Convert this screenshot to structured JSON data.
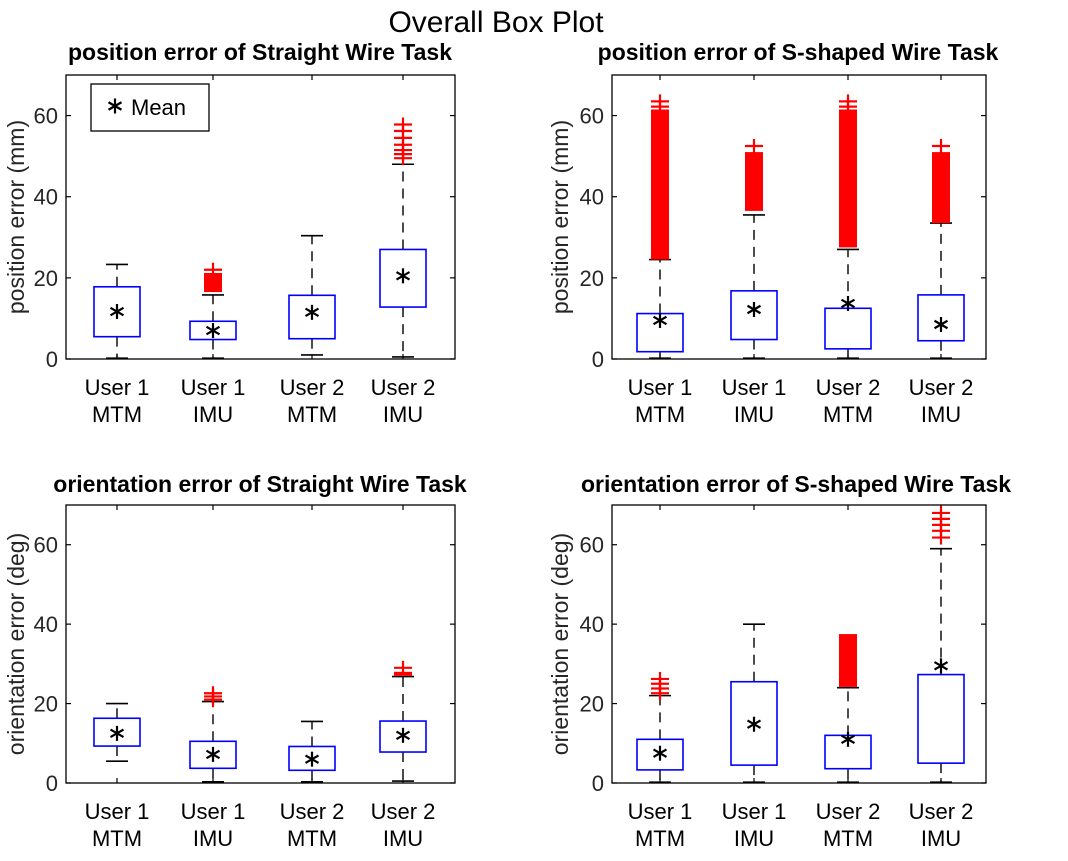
{
  "figure_title": "Overall Box Plot",
  "legend": {
    "symbol": "*",
    "label": "Mean"
  },
  "colors": {
    "box": "#0000ff",
    "whisker": "#000000",
    "outlier": "#ff0000",
    "mean": "#000000"
  },
  "chart_data": [
    {
      "type": "box",
      "title": "position error of Straight Wire Task",
      "ylabel": "position error (mm)",
      "ylim": [
        0,
        70
      ],
      "yticks": [
        0,
        20,
        40,
        60
      ],
      "categories": [
        "User 1\nMTM",
        "User 1\nIMU",
        "User 2\nMTM",
        "User 2\nIMU"
      ],
      "boxes": [
        {
          "whisker_low": 0.2,
          "q1": 5.5,
          "q3": 17.8,
          "whisker_high": 23.3,
          "mean": 11.7,
          "outliers": []
        },
        {
          "whisker_low": 0.2,
          "q1": 4.8,
          "q3": 9.3,
          "whisker_high": 15.8,
          "mean": 7.0,
          "outliers_band": [
            16.5,
            21.2
          ],
          "outliers": [
            22
          ]
        },
        {
          "whisker_low": 1.0,
          "q1": 5.0,
          "q3": 15.7,
          "whisker_high": 30.4,
          "mean": 11.5,
          "outliers": []
        },
        {
          "whisker_low": 0.5,
          "q1": 12.8,
          "q3": 27.0,
          "whisker_high": 48.0,
          "mean": 20.5,
          "outliers": [
            49.5,
            50.5,
            51.5,
            52.8,
            54.5,
            56.2,
            57.8
          ]
        }
      ],
      "legend": true
    },
    {
      "type": "box",
      "title": "position error of S-shaped Wire Task",
      "ylabel": "position error (mm)",
      "ylim": [
        0,
        70
      ],
      "yticks": [
        0,
        20,
        40,
        60
      ],
      "categories": [
        "User 1\nMTM",
        "User 1\nIMU",
        "User 2\nMTM",
        "User 2\nIMU"
      ],
      "boxes": [
        {
          "whisker_low": 0.2,
          "q1": 1.8,
          "q3": 11.2,
          "whisker_high": 24.5,
          "mean": 9.5,
          "outliers_band": [
            24.5,
            61.5
          ],
          "outliers": [
            62.2,
            63.5
          ]
        },
        {
          "whisker_low": 0.2,
          "q1": 4.8,
          "q3": 16.8,
          "whisker_high": 35.5,
          "mean": 12.2,
          "outliers_band": [
            36.5,
            51.0
          ],
          "outliers": [
            52.5
          ]
        },
        {
          "whisker_low": 0.2,
          "q1": 2.5,
          "q3": 12.5,
          "whisker_high": 27.0,
          "mean": 13.7,
          "outliers_band": [
            27.5,
            61.5
          ],
          "outliers": [
            62.2,
            63.5
          ]
        },
        {
          "whisker_low": 0.2,
          "q1": 4.5,
          "q3": 15.8,
          "whisker_high": 33.5,
          "mean": 8.5,
          "outliers_band": [
            33.5,
            51.0
          ],
          "outliers": [
            52.5
          ]
        }
      ],
      "legend": false
    },
    {
      "type": "box",
      "title": "orientation error of Straight Wire Task",
      "ylabel": "orientation error (deg)",
      "ylim": [
        0,
        70
      ],
      "yticks": [
        0,
        20,
        40,
        60
      ],
      "categories": [
        "User 1\nMTM",
        "User 1\nIMU",
        "User 2\nMTM",
        "User 2\nIMU"
      ],
      "boxes": [
        {
          "whisker_low": 5.5,
          "q1": 9.3,
          "q3": 16.3,
          "whisker_high": 20.0,
          "mean": 12.5,
          "outliers": []
        },
        {
          "whisker_low": 0.3,
          "q1": 3.7,
          "q3": 10.5,
          "whisker_high": 20.5,
          "mean": 7.2,
          "outliers": [
            21.0,
            21.8,
            22.6
          ]
        },
        {
          "whisker_low": 0.3,
          "q1": 3.2,
          "q3": 9.2,
          "whisker_high": 15.5,
          "mean": 6.0,
          "outliers": []
        },
        {
          "whisker_low": 0.5,
          "q1": 7.8,
          "q3": 15.6,
          "whisker_high": 26.8,
          "mean": 12.0,
          "outliers_band": [
            27.0,
            28.0
          ],
          "outliers": [
            29.0
          ]
        }
      ],
      "legend": false
    },
    {
      "type": "box",
      "title": "orientation error of S-shaped Wire Task",
      "ylabel": "orientation error (deg)",
      "ylim": [
        0,
        70
      ],
      "yticks": [
        0,
        20,
        40,
        60
      ],
      "categories": [
        "User 1\nMTM",
        "User 1\nIMU",
        "User 2\nMTM",
        "User 2\nIMU"
      ],
      "boxes": [
        {
          "whisker_low": 0.2,
          "q1": 3.3,
          "q3": 11.0,
          "whisker_high": 22.0,
          "mean": 7.5,
          "outliers": [
            22.6,
            23.8,
            25.0,
            26.2
          ]
        },
        {
          "whisker_low": 0.2,
          "q1": 4.5,
          "q3": 25.5,
          "whisker_high": 40.0,
          "mean": 14.8,
          "outliers": []
        },
        {
          "whisker_low": 0.2,
          "q1": 3.6,
          "q3": 12.0,
          "whisker_high": 24.0,
          "mean": 11.0,
          "outliers_band": [
            24.2,
            37.5
          ],
          "outliers": [
            29.5
          ]
        },
        {
          "whisker_low": 0.2,
          "q1": 5.0,
          "q3": 27.3,
          "whisker_high": 59.0,
          "mean": 29.5,
          "outliers": [
            61.8,
            63.5,
            65.0,
            66.5,
            68.0
          ]
        }
      ],
      "legend": false
    }
  ]
}
